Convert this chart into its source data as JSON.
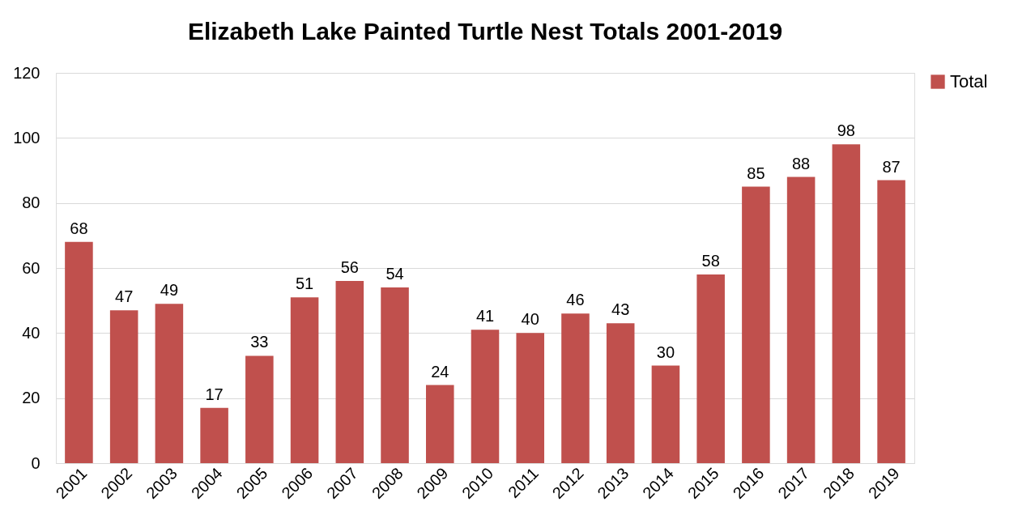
{
  "chart_data": {
    "type": "bar",
    "title": "Elizabeth Lake Painted Turtle Nest Totals 2001-2019",
    "categories": [
      "2001",
      "2002",
      "2003",
      "2004",
      "2005",
      "2006",
      "2007",
      "2008",
      "2009",
      "2010",
      "2011",
      "2012",
      "2013",
      "2014",
      "2015",
      "2016",
      "2017",
      "2018",
      "2019"
    ],
    "series": [
      {
        "name": "Total",
        "color": "#c0504d",
        "values": [
          68,
          47,
          49,
          17,
          33,
          51,
          56,
          54,
          24,
          41,
          40,
          46,
          43,
          30,
          58,
          85,
          88,
          98,
          87
        ]
      }
    ],
    "ylim": [
      0,
      120
    ],
    "yticks": [
      0,
      20,
      40,
      60,
      80,
      100,
      120
    ],
    "grid": "y",
    "legend": "right",
    "data_labels": true
  }
}
